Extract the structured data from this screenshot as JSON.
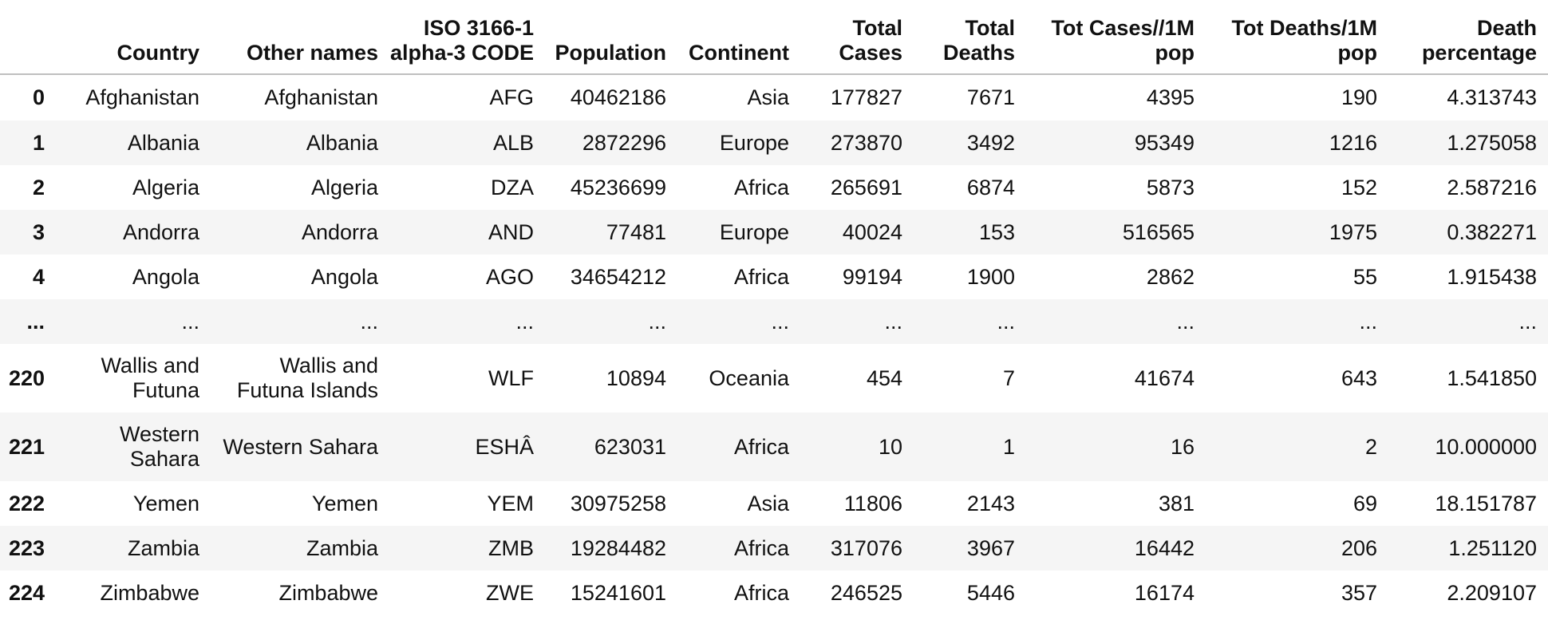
{
  "columns": [
    "",
    "Country",
    "Other names",
    "ISO 3166-1 alpha-3 CODE",
    "Population",
    "Continent",
    "Total Cases",
    "Total Deaths",
    "Tot Cases//1M pop",
    "Tot Deaths/1M pop",
    "Death percentage"
  ],
  "rows": [
    [
      "0",
      "Afghanistan",
      "Afghanistan",
      "AFG",
      "40462186",
      "Asia",
      "177827",
      "7671",
      "4395",
      "190",
      "4.313743"
    ],
    [
      "1",
      "Albania",
      "Albania",
      "ALB",
      "2872296",
      "Europe",
      "273870",
      "3492",
      "95349",
      "1216",
      "1.275058"
    ],
    [
      "2",
      "Algeria",
      "Algeria",
      "DZA",
      "45236699",
      "Africa",
      "265691",
      "6874",
      "5873",
      "152",
      "2.587216"
    ],
    [
      "3",
      "Andorra",
      "Andorra",
      "AND",
      "77481",
      "Europe",
      "40024",
      "153",
      "516565",
      "1975",
      "0.382271"
    ],
    [
      "4",
      "Angola",
      "Angola",
      "AGO",
      "34654212",
      "Africa",
      "99194",
      "1900",
      "2862",
      "55",
      "1.915438"
    ],
    [
      "...",
      "...",
      "...",
      "...",
      "...",
      "...",
      "...",
      "...",
      "...",
      "...",
      "..."
    ],
    [
      "220",
      "Wallis and Futuna",
      "Wallis and Futuna Islands",
      "WLF",
      "10894",
      "Oceania",
      "454",
      "7",
      "41674",
      "643",
      "1.541850"
    ],
    [
      "221",
      "Western Sahara",
      "Western Sahara",
      "ESHÂ",
      "623031",
      "Africa",
      "10",
      "1",
      "16",
      "2",
      "10.000000"
    ],
    [
      "222",
      "Yemen",
      "Yemen",
      "YEM",
      "30975258",
      "Asia",
      "11806",
      "2143",
      "381",
      "69",
      "18.151787"
    ],
    [
      "223",
      "Zambia",
      "Zambia",
      "ZMB",
      "19284482",
      "Africa",
      "317076",
      "3967",
      "16442",
      "206",
      "1.251120"
    ],
    [
      "224",
      "Zimbabwe",
      "Zimbabwe",
      "ZWE",
      "15241601",
      "Africa",
      "246525",
      "5446",
      "16174",
      "357",
      "2.209107"
    ]
  ]
}
